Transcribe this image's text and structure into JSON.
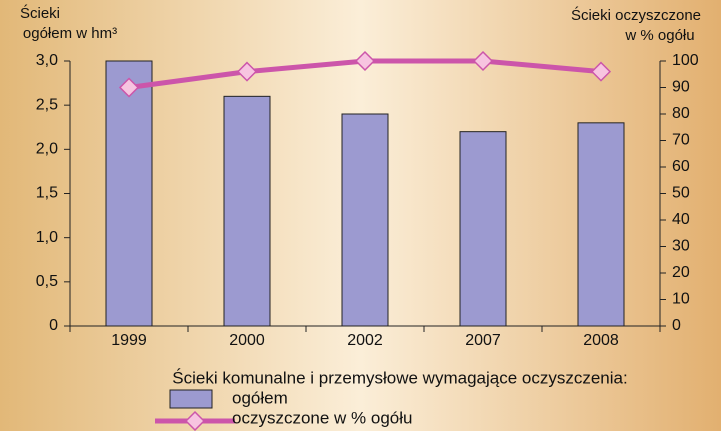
{
  "chart_data": {
    "type": "bar",
    "y_label": [
      "Ścieki",
      "ogółem w hm³"
    ],
    "y2_label": [
      "Ścieki oczyszczone",
      "w % ogółu"
    ],
    "legend_title": "Ścieki komunalne i przemysłowe wymagające oczyszczenia:",
    "categories": [
      "1999",
      "2000",
      "2002",
      "2007",
      "2008"
    ],
    "series": [
      {
        "name": "ogółem",
        "type": "bar",
        "color": "#9c9ad0",
        "values": [
          3.0,
          2.6,
          2.4,
          2.2,
          2.3
        ]
      },
      {
        "name": "oczyszczone w % ogółu",
        "type": "line",
        "axis": "y2",
        "color": "#cc55aa",
        "marker_color": "#f7c4e0",
        "values": [
          90,
          96,
          100,
          100,
          96
        ]
      }
    ],
    "ylim": [
      0,
      3.0
    ],
    "yticks": [
      0,
      {
        "value": 0.5,
        "label": "0,5"
      },
      {
        "value": 1.0,
        "label": "1,0"
      },
      {
        "value": 1.5,
        "label": "1,5"
      },
      {
        "value": 2.0,
        "label": "2,0"
      },
      {
        "value": 2.5,
        "label": "2,5"
      },
      {
        "value": 3.0,
        "label": "3,0"
      }
    ],
    "y2lim": [
      0,
      100
    ],
    "y2ticks": [
      0,
      10,
      20,
      30,
      40,
      50,
      60,
      70,
      80,
      90,
      100
    ]
  }
}
